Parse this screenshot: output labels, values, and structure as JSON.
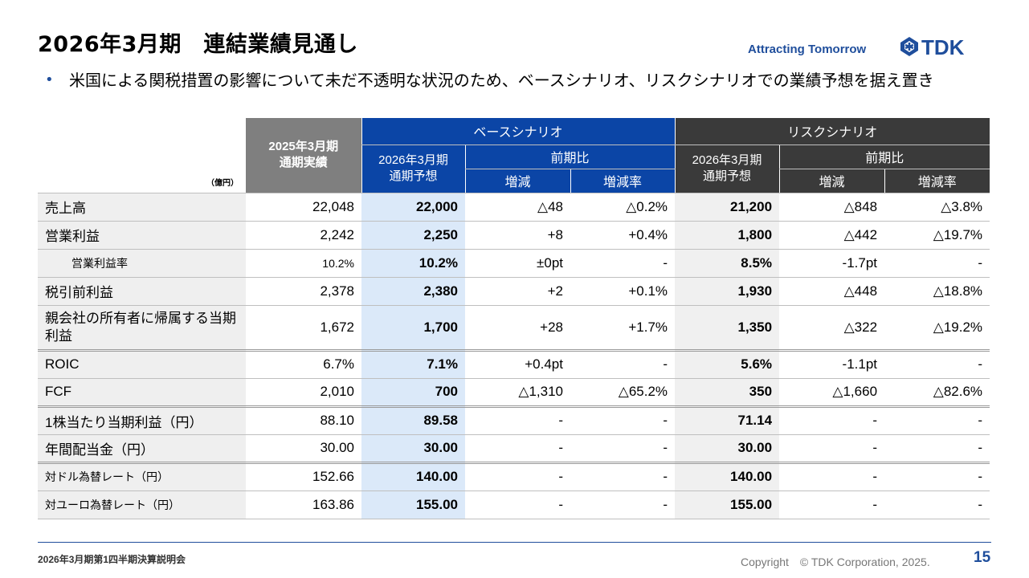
{
  "title": "2026年3月期　連結業績見通し",
  "tagline": "Attracting Tomorrow",
  "logo_text": "TDK",
  "bullet": "米国による関税措置の影響について未だ不透明な状況のため、ベースシナリオ、リスクシナリオでの業績予想を据え置き",
  "table": {
    "unit": "（億円）",
    "col_actual": "2025年3月期\n通期実績",
    "col_base_group": "ベースシナリオ",
    "col_risk_group": "リスクシナリオ",
    "col_forecast_base": "2026年3月期\n通期予想",
    "col_forecast_risk": "2026年3月期\n通期予想",
    "col_yoy_base": "前期比",
    "col_yoy_risk": "前期比",
    "col_change_base": "増減",
    "col_rate_base": "増減率",
    "col_change_risk": "増減",
    "col_rate_risk": "増減率",
    "rows": [
      {
        "label": "売上高",
        "actual": "22,048",
        "base": "22,000",
        "base_chg": "△48",
        "base_rate": "△0.2%",
        "risk": "21,200",
        "risk_chg": "△848",
        "risk_rate": "△3.8%"
      },
      {
        "label": "営業利益",
        "actual": "2,242",
        "base": "2,250",
        "base_chg": "+8",
        "base_rate": "+0.4%",
        "risk": "1,800",
        "risk_chg": "△442",
        "risk_rate": "△19.7%"
      },
      {
        "label": "営業利益率",
        "actual": "10.2%",
        "base": "10.2%",
        "base_chg": "±0pt",
        "base_rate": "-",
        "risk": "8.5%",
        "risk_chg": "-1.7pt",
        "risk_rate": "-"
      },
      {
        "label": "税引前利益",
        "actual": "2,378",
        "base": "2,380",
        "base_chg": "+2",
        "base_rate": "+0.1%",
        "risk": "1,930",
        "risk_chg": "△448",
        "risk_rate": "△18.8%"
      },
      {
        "label": "親会社の所有者に帰属する当期利益",
        "actual": "1,672",
        "base": "1,700",
        "base_chg": "+28",
        "base_rate": "+1.7%",
        "risk": "1,350",
        "risk_chg": "△322",
        "risk_rate": "△19.2%"
      },
      {
        "label": "ROIC",
        "actual": "6.7%",
        "base": "7.1%",
        "base_chg": "+0.4pt",
        "base_rate": "-",
        "risk": "5.6%",
        "risk_chg": "-1.1pt",
        "risk_rate": "-"
      },
      {
        "label": "FCF",
        "actual": "2,010",
        "base": "700",
        "base_chg": "△1,310",
        "base_rate": "△65.2%",
        "risk": "350",
        "risk_chg": "△1,660",
        "risk_rate": "△82.6%"
      },
      {
        "label": "1株当たり当期利益（円）",
        "actual": "88.10",
        "base": "89.58",
        "base_chg": "-",
        "base_rate": "-",
        "risk": "71.14",
        "risk_chg": "-",
        "risk_rate": "-"
      },
      {
        "label": "年間配当金（円）",
        "actual": "30.00",
        "base": "30.00",
        "base_chg": "-",
        "base_rate": "-",
        "risk": "30.00",
        "risk_chg": "-",
        "risk_rate": "-"
      },
      {
        "label": "対ドル為替レート（円）",
        "actual": "152.66",
        "base": "140.00",
        "base_chg": "-",
        "base_rate": "-",
        "risk": "140.00",
        "risk_chg": "-",
        "risk_rate": "-"
      },
      {
        "label": "対ユーロ為替レート（円）",
        "actual": "163.86",
        "base": "155.00",
        "base_chg": "-",
        "base_rate": "-",
        "risk": "155.00",
        "risk_chg": "-",
        "risk_rate": "-"
      }
    ]
  },
  "footer": {
    "event": "2026年3月期第1四半期決算説明会",
    "copyright": "Copyright　© TDK Corporation, 2025.",
    "page": "15"
  },
  "colors": {
    "accent_blue": "#0b45a6",
    "base_fill": "#dbe9f9",
    "risk_header": "#3a3a3a"
  }
}
